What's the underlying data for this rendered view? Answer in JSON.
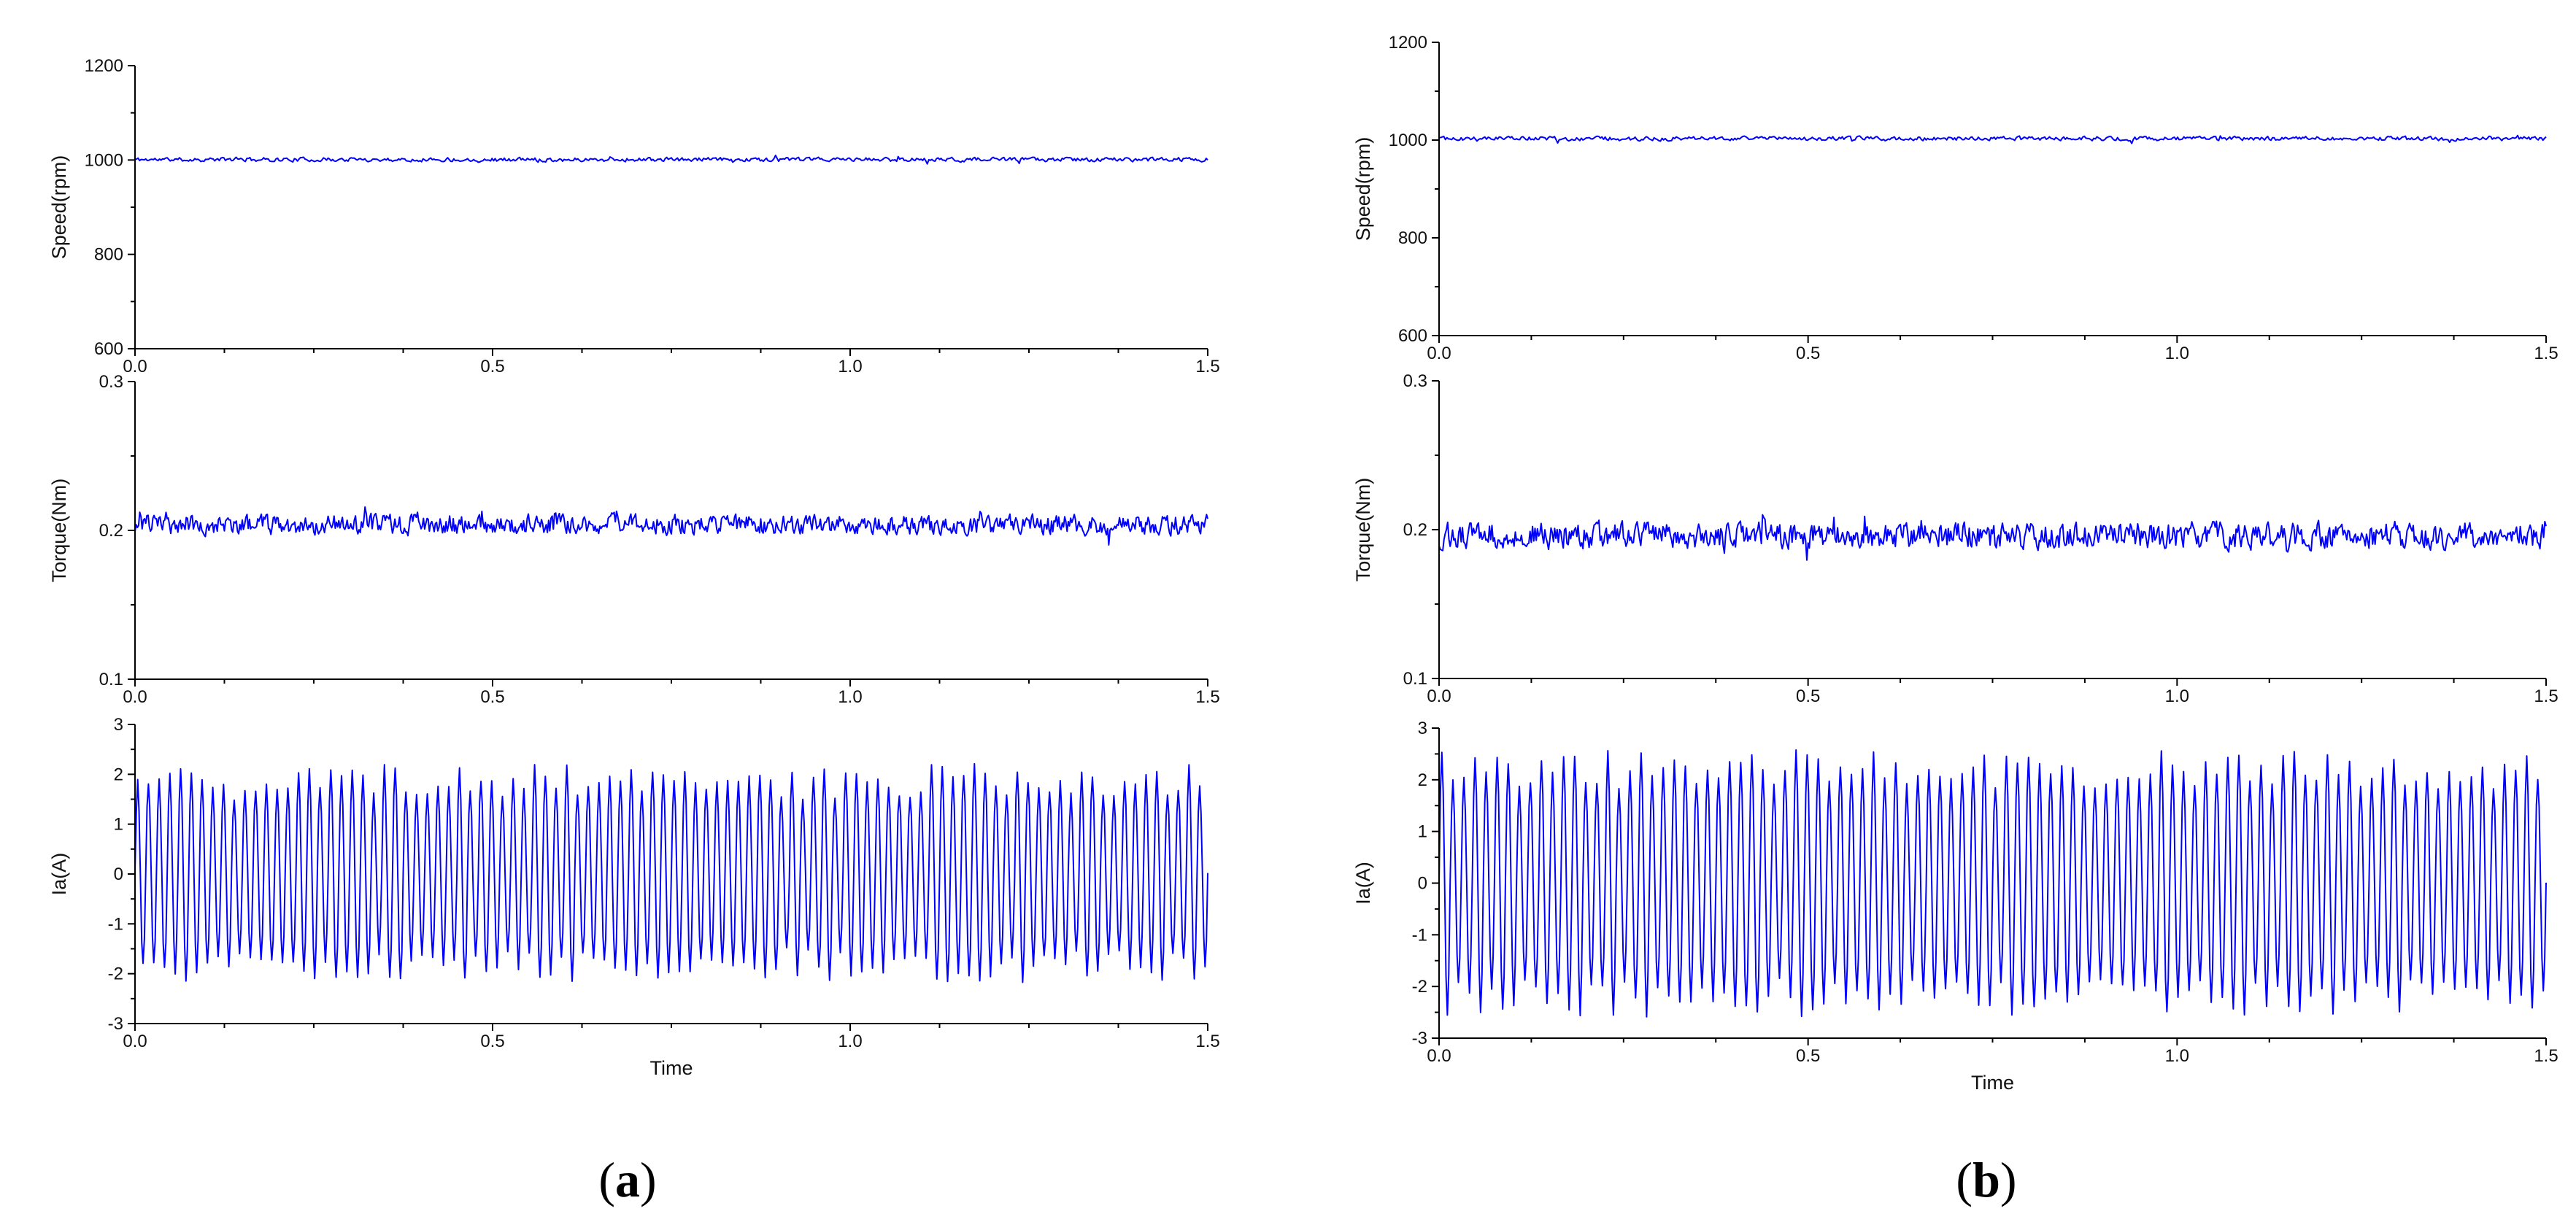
{
  "colors": {
    "series": "#0000ff",
    "axis": "#000000",
    "background": "#ffffff"
  },
  "captions": [
    {
      "open": "(",
      "letter": "a",
      "close": ")"
    },
    {
      "open": "(",
      "letter": "b",
      "close": ")"
    }
  ],
  "chart_data": [
    {
      "panel": "a",
      "type": "line",
      "title": "",
      "xlabel": "",
      "ylabel": "Speed(rpm)",
      "xlim": [
        0,
        1.5
      ],
      "ylim": [
        600,
        1200
      ],
      "xticks": [
        "0.0",
        "0.5",
        "1.0",
        "1.5"
      ],
      "yticks": [
        "600",
        "800",
        "1000",
        "1200"
      ],
      "grid": false,
      "series": [
        {
          "kind": "noise",
          "mean": 1001,
          "amplitude": 6,
          "samples": 700,
          "seed": 11
        }
      ]
    },
    {
      "panel": "a",
      "type": "line",
      "title": "",
      "xlabel": "",
      "ylabel": "Torque(Nm)",
      "xlim": [
        0,
        1.5
      ],
      "ylim": [
        0.1,
        0.3
      ],
      "xticks": [
        "0.0",
        "0.5",
        "1.0",
        "1.5"
      ],
      "yticks": [
        "0.1",
        "0.2",
        "0.3"
      ],
      "grid": false,
      "series": [
        {
          "kind": "noise",
          "mean": 0.204,
          "amplitude": 0.009,
          "samples": 900,
          "seed": 23
        }
      ]
    },
    {
      "panel": "a",
      "type": "line",
      "title": "",
      "xlabel": "Time",
      "ylabel": "Ia(A)",
      "xlim": [
        0,
        1.5
      ],
      "ylim": [
        -3,
        3
      ],
      "xticks": [
        "0.0",
        "0.5",
        "1.0",
        "1.5"
      ],
      "yticks": [
        "-3",
        "-2",
        "-1",
        "0",
        "1",
        "2",
        "3"
      ],
      "grid": false,
      "series": [
        {
          "kind": "sine",
          "amplitude": 1.85,
          "amplitude_jitter": 0.3,
          "cycles": 100,
          "seed": 37
        }
      ]
    },
    {
      "panel": "b",
      "type": "line",
      "title": "",
      "xlabel": "",
      "ylabel": "Speed(rpm)",
      "xlim": [
        0,
        1.5
      ],
      "ylim": [
        600,
        1200
      ],
      "xticks": [
        "0.0",
        "0.5",
        "1.0",
        "1.5"
      ],
      "yticks": [
        "600",
        "800",
        "1000",
        "1200"
      ],
      "grid": false,
      "series": [
        {
          "kind": "noise",
          "mean": 1003,
          "amplitude": 6,
          "samples": 700,
          "seed": 41
        }
      ]
    },
    {
      "panel": "b",
      "type": "line",
      "title": "",
      "xlabel": "",
      "ylabel": "Torque(Nm)",
      "xlim": [
        0,
        1.5
      ],
      "ylim": [
        0.1,
        0.3
      ],
      "xticks": [
        "0.0",
        "0.5",
        "1.0",
        "1.5"
      ],
      "yticks": [
        "0.1",
        "0.2",
        "0.3"
      ],
      "grid": false,
      "series": [
        {
          "kind": "noise",
          "mean": 0.196,
          "amplitude": 0.012,
          "samples": 900,
          "seed": 53
        }
      ]
    },
    {
      "panel": "b",
      "type": "line",
      "title": "",
      "xlabel": "Time",
      "ylabel": "Ia(A)",
      "xlim": [
        0,
        1.5
      ],
      "ylim": [
        -3,
        3
      ],
      "xticks": [
        "0.0",
        "0.5",
        "1.0",
        "1.5"
      ],
      "yticks": [
        "-3",
        "-2",
        "-1",
        "0",
        "1",
        "2",
        "3"
      ],
      "grid": false,
      "series": [
        {
          "kind": "sine",
          "amplitude": 2.2,
          "amplitude_jitter": 0.35,
          "cycles": 100,
          "seed": 67
        }
      ]
    }
  ]
}
